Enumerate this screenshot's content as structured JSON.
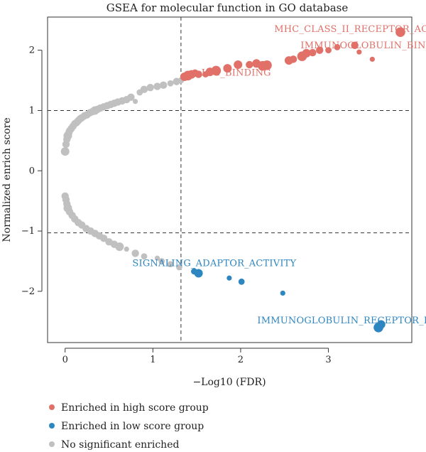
{
  "chart_data": {
    "type": "scatter",
    "title": "GSEA for molecular function in GO database",
    "xlabel": "−Log10 (FDR)",
    "ylabel": "Normalized enrich score",
    "xlim": [
      -0.2,
      3.95
    ],
    "ylim": [
      -2.85,
      2.55
    ],
    "x_ticks": [
      0,
      1,
      2,
      3
    ],
    "y_ticks": [
      -2,
      -1,
      0,
      1,
      2
    ],
    "x_tick_labels": [
      "0",
      "1",
      "2",
      "3"
    ],
    "y_tick_labels": [
      "−2",
      "−1",
      "0",
      "1",
      "2"
    ],
    "threshold_x": 1.32,
    "threshold_y": [
      1.0,
      -1.03
    ],
    "colors": {
      "high": "#e07068",
      "low": "#2e86c1",
      "none": "#c0c0c0"
    },
    "annotations": [
      {
        "text": "MHC_CLASS_II_RECEPTOR_ACTIVITY",
        "x": 3.45,
        "y": 2.3,
        "group": "high"
      },
      {
        "text": "IMMUNOGLOBULIN_BINDING",
        "x": 3.55,
        "y": 2.03,
        "group": "high"
      },
      {
        "text": "IGG_BINDING",
        "x": 1.95,
        "y": 1.58,
        "group": "high"
      },
      {
        "text": "SIGNALING_ADAPTOR_ACTIVITY",
        "x": 1.7,
        "y": -1.58,
        "group": "low"
      },
      {
        "text": "IMMUNOGLOBULIN_RECEPTOR_BINDING",
        "x": 3.4,
        "y": -2.53,
        "group": "low"
      }
    ],
    "legend": {
      "placement": "bottom-left",
      "entries": [
        {
          "label": "Enriched in high score group",
          "group": "high"
        },
        {
          "label": "Enriched in low score group",
          "group": "low"
        },
        {
          "label": "No significant enriched",
          "group": "none"
        }
      ]
    },
    "series": [
      {
        "group": "high",
        "points": [
          [
            1.36,
            1.56,
            2.5
          ],
          [
            1.4,
            1.58,
            3
          ],
          [
            1.44,
            1.6,
            2.5
          ],
          [
            1.48,
            1.62,
            2
          ],
          [
            1.52,
            1.6,
            2
          ],
          [
            1.6,
            1.6,
            1.5
          ],
          [
            1.65,
            1.64,
            2.5
          ],
          [
            1.72,
            1.66,
            3
          ],
          [
            1.85,
            1.7,
            2.5
          ],
          [
            1.97,
            1.76,
            2.5
          ],
          [
            2.1,
            1.76,
            2
          ],
          [
            2.18,
            1.78,
            2.5
          ],
          [
            2.25,
            1.74,
            3
          ],
          [
            2.3,
            1.75,
            3
          ],
          [
            2.55,
            1.83,
            2.5
          ],
          [
            2.6,
            1.85,
            2
          ],
          [
            2.7,
            1.9,
            3
          ],
          [
            2.75,
            1.95,
            2.5
          ],
          [
            2.82,
            1.96,
            2
          ],
          [
            2.9,
            2.0,
            2
          ],
          [
            3.0,
            2.0,
            1.5
          ],
          [
            3.1,
            2.05,
            1.5
          ],
          [
            3.3,
            2.08,
            2
          ],
          [
            3.35,
            1.97,
            1
          ],
          [
            3.5,
            1.85,
            1
          ],
          [
            3.82,
            2.3,
            3
          ]
        ]
      },
      {
        "group": "low",
        "points": [
          [
            1.47,
            -1.67,
            1.5
          ],
          [
            1.52,
            -1.7,
            2.5
          ],
          [
            1.87,
            -1.78,
            1
          ],
          [
            2.01,
            -1.84,
            1.5
          ],
          [
            2.48,
            -2.03,
            1
          ],
          [
            3.57,
            -2.6,
            3
          ],
          [
            3.6,
            -2.55,
            2.5
          ]
        ]
      },
      {
        "group": "none",
        "points": [
          [
            0.0,
            0.32,
            2.5
          ],
          [
            0.01,
            0.44,
            2
          ],
          [
            0.02,
            0.52,
            2
          ],
          [
            0.03,
            0.58,
            2.5
          ],
          [
            0.04,
            0.62,
            2
          ],
          [
            0.05,
            0.66,
            2
          ],
          [
            0.07,
            0.7,
            2
          ],
          [
            0.09,
            0.74,
            2
          ],
          [
            0.11,
            0.78,
            2
          ],
          [
            0.13,
            0.8,
            2
          ],
          [
            0.15,
            0.83,
            2
          ],
          [
            0.17,
            0.86,
            2
          ],
          [
            0.19,
            0.88,
            2
          ],
          [
            0.22,
            0.91,
            2
          ],
          [
            0.25,
            0.93,
            2
          ],
          [
            0.28,
            0.96,
            2
          ],
          [
            0.31,
            0.98,
            2
          ],
          [
            0.34,
            1.0,
            2.5
          ],
          [
            0.37,
            1.02,
            2
          ],
          [
            0.4,
            1.04,
            2
          ],
          [
            0.44,
            1.06,
            2
          ],
          [
            0.48,
            1.08,
            2
          ],
          [
            0.52,
            1.1,
            2
          ],
          [
            0.56,
            1.12,
            2
          ],
          [
            0.6,
            1.14,
            2
          ],
          [
            0.65,
            1.16,
            2
          ],
          [
            0.7,
            1.18,
            2
          ],
          [
            0.75,
            1.22,
            2
          ],
          [
            0.8,
            1.15,
            1
          ],
          [
            0.85,
            1.3,
            1.5
          ],
          [
            0.9,
            1.35,
            2
          ],
          [
            0.97,
            1.38,
            2
          ],
          [
            1.05,
            1.4,
            2
          ],
          [
            1.12,
            1.42,
            2
          ],
          [
            1.2,
            1.45,
            1.5
          ],
          [
            1.27,
            1.48,
            2
          ],
          [
            1.32,
            1.5,
            1.5
          ],
          [
            0.0,
            -0.42,
            2
          ],
          [
            0.01,
            -0.48,
            2
          ],
          [
            0.02,
            -0.55,
            2
          ],
          [
            0.03,
            -0.62,
            2.5
          ],
          [
            0.05,
            -0.68,
            2
          ],
          [
            0.08,
            -0.74,
            2
          ],
          [
            0.11,
            -0.8,
            2
          ],
          [
            0.15,
            -0.86,
            2
          ],
          [
            0.19,
            -0.9,
            2
          ],
          [
            0.24,
            -0.96,
            2
          ],
          [
            0.29,
            -1.0,
            2
          ],
          [
            0.34,
            -1.04,
            2
          ],
          [
            0.39,
            -1.08,
            2
          ],
          [
            0.44,
            -1.12,
            2
          ],
          [
            0.5,
            -1.18,
            2
          ],
          [
            0.56,
            -1.22,
            2
          ],
          [
            0.62,
            -1.26,
            2.5
          ],
          [
            0.7,
            -1.3,
            1
          ],
          [
            0.8,
            -1.37,
            2
          ],
          [
            0.9,
            -1.42,
            1.5
          ],
          [
            1.05,
            -1.45,
            1
          ],
          [
            1.1,
            -1.5,
            1.5
          ],
          [
            1.2,
            -1.55,
            1.5
          ],
          [
            1.3,
            -1.6,
            1.5
          ]
        ]
      }
    ]
  }
}
